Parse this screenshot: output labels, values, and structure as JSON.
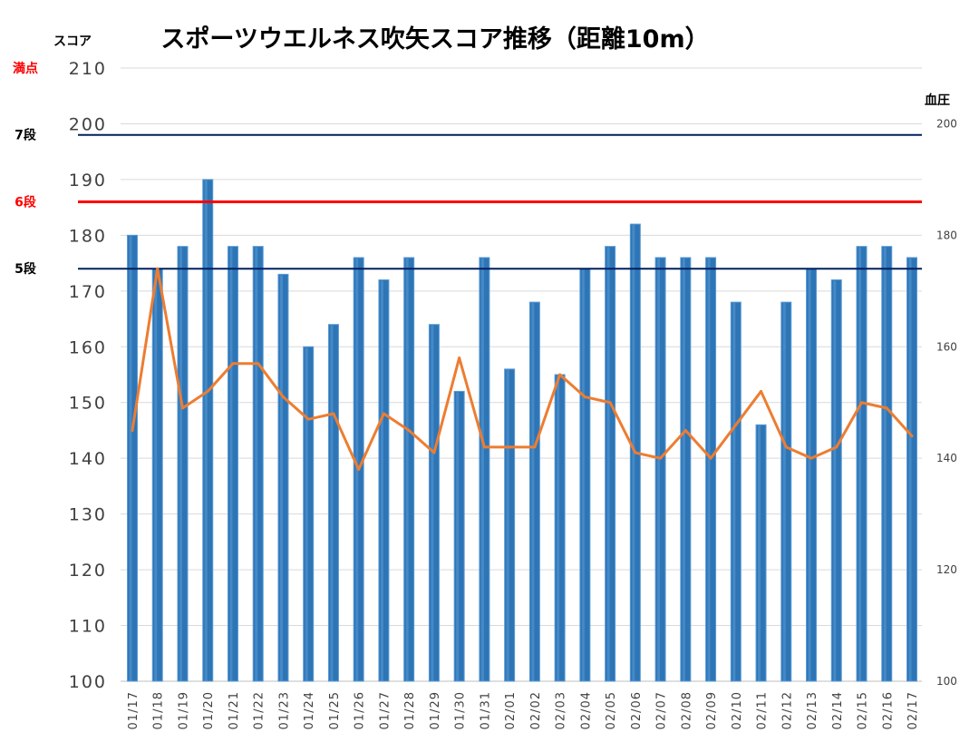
{
  "chart_data": {
    "type": "bar",
    "title": "スポーツウエルネス吹矢スコア推移（距離10m）",
    "ylabel": "スコア",
    "y2label": "血圧",
    "ylim": [
      100,
      210
    ],
    "y2lim": [
      100,
      210
    ],
    "yticks": [
      100,
      110,
      120,
      130,
      140,
      150,
      160,
      170,
      180,
      190,
      200,
      210
    ],
    "y2ticks": [
      100,
      120,
      140,
      160,
      180,
      200
    ],
    "grid": true,
    "categories": [
      "01/17",
      "01/18",
      "01/19",
      "01/20",
      "01/21",
      "01/22",
      "01/23",
      "01/24",
      "01/25",
      "01/26",
      "01/27",
      "01/28",
      "01/29",
      "01/30",
      "01/31",
      "02/01",
      "02/02",
      "02/03",
      "02/04",
      "02/05",
      "02/06",
      "02/07",
      "02/08",
      "02/09",
      "02/10",
      "02/11",
      "02/12",
      "02/13",
      "02/14",
      "02/15",
      "02/16",
      "02/17"
    ],
    "series": [
      {
        "kind": "bar",
        "axis": "left",
        "color": "#2E75B6",
        "values": [
          180,
          174,
          178,
          190,
          178,
          178,
          173,
          160,
          164,
          176,
          172,
          176,
          164,
          152,
          176,
          156,
          168,
          155,
          174,
          178,
          182,
          176,
          176,
          176,
          168,
          146,
          168,
          174,
          172,
          178,
          178,
          176
        ]
      },
      {
        "kind": "line",
        "axis": "right",
        "color": "#ED7D31",
        "values": [
          145,
          174,
          149,
          152,
          157,
          157,
          151,
          147,
          148,
          138,
          148,
          145,
          141,
          158,
          142,
          142,
          142,
          155,
          151,
          150,
          141,
          140,
          145,
          140,
          146,
          152,
          142,
          140,
          142,
          150,
          149,
          144
        ]
      }
    ],
    "reference_lines": [
      {
        "label": "満点",
        "value": 210,
        "color": "#FF0000",
        "draw": false
      },
      {
        "label": "7段",
        "value": 198,
        "color": "#002060",
        "draw": true
      },
      {
        "label": "6段",
        "value": 186,
        "color": "#FF0000",
        "draw": true
      },
      {
        "label": "5段",
        "value": 174,
        "color": "#002060",
        "draw": true
      }
    ]
  }
}
